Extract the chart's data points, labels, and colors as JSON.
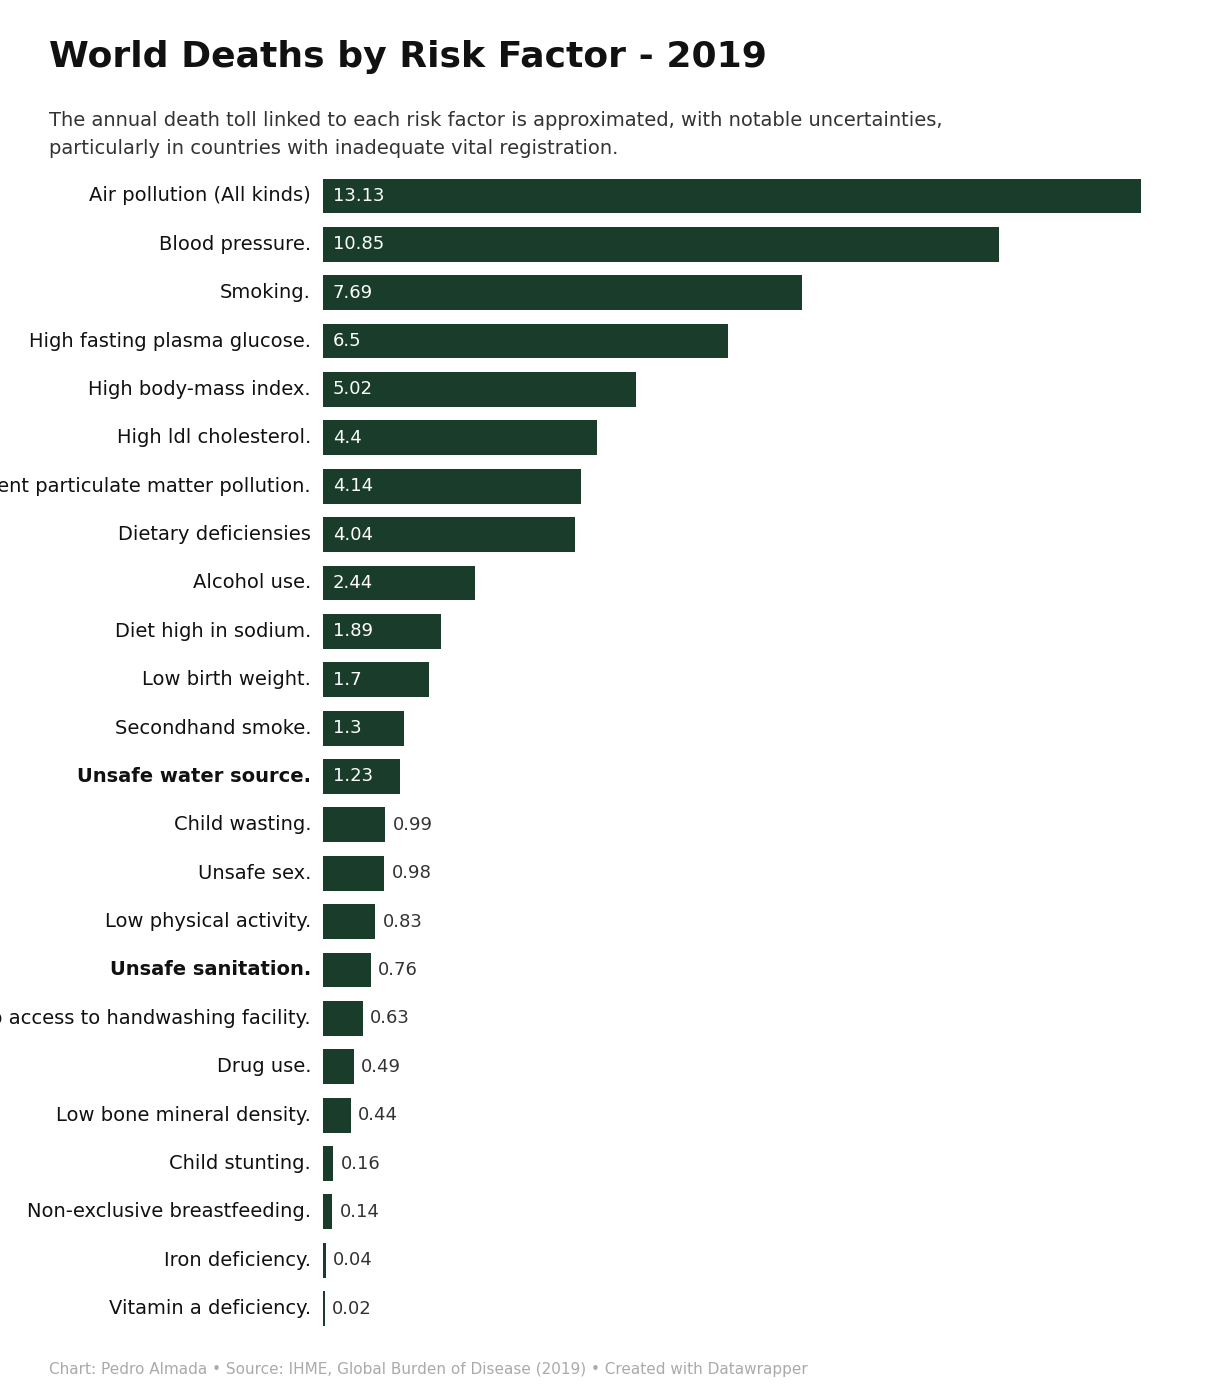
{
  "title": "World Deaths by Risk Factor - 2019",
  "subtitle": "The annual death toll linked to each risk factor is approximated, with notable uncertainties,\nparticularly in countries with inadequate vital registration.",
  "footer": "Chart: Pedro Almada • Source: IHME, Global Burden of Disease (2019) • Created with Datawrapper",
  "bar_color": "#1a3d2b",
  "background_color": "#ffffff",
  "categories": [
    "Air pollution (All kinds)",
    "Blood pressure.",
    "Smoking.",
    "High fasting plasma glucose.",
    "High body-mass index.",
    "High ldl cholesterol.",
    "Ambient particulate matter pollution.",
    "Dietary deficiensies",
    "Alcohol use.",
    "Diet high in sodium.",
    "Low birth weight.",
    "Secondhand smoke.",
    "Unsafe water source.",
    "Child wasting.",
    "Unsafe sex.",
    "Low physical activity.",
    "Unsafe sanitation.",
    "No access to handwashing facility.",
    "Drug use.",
    "Low bone mineral density.",
    "Child stunting.",
    "Non-exclusive breastfeeding.",
    "Iron deficiency.",
    "Vitamin a deficiency."
  ],
  "values": [
    13.13,
    10.85,
    7.69,
    6.5,
    5.02,
    4.4,
    4.14,
    4.04,
    2.44,
    1.89,
    1.7,
    1.3,
    1.23,
    0.99,
    0.98,
    0.83,
    0.76,
    0.63,
    0.49,
    0.44,
    0.16,
    0.14,
    0.04,
    0.02
  ],
  "bold_categories": [
    "Unsafe water source.",
    "Unsafe sanitation."
  ],
  "inside_threshold": 1.23,
  "xlim": [
    0,
    14.0
  ],
  "title_fontsize": 26,
  "subtitle_fontsize": 14,
  "label_fontsize": 14,
  "value_fontsize": 13,
  "footer_fontsize": 11,
  "bar_height": 0.72
}
